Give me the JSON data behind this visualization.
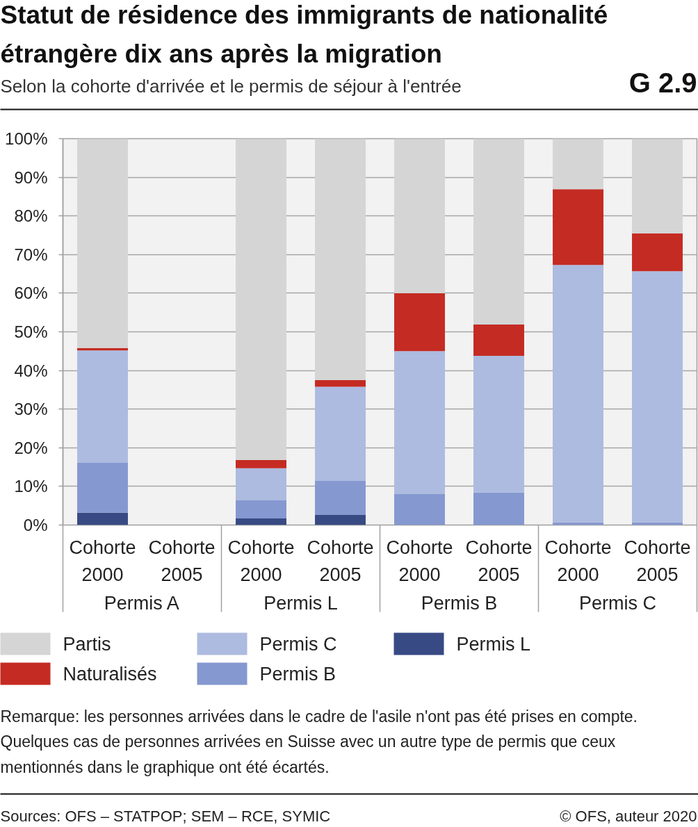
{
  "chart_data": {
    "type": "bar",
    "title": "Statut de résidence des immigrants de nationalité étrangère dix ans après la migration",
    "subtitle": "Selon la cohorte d'arrivée et le permis de séjour à l'entrée",
    "categories": [
      "Cohorte 2000",
      "Cohorte 2005",
      "Cohorte 2000",
      "Cohorte 2005",
      "Cohorte 2000",
      "Cohorte 2005",
      "Cohorte 2000",
      "Cohorte 2005"
    ],
    "stacked": true,
    "series": [
      {
        "name": "Permis L",
        "color": "#384a84",
        "values": [
          3.2,
          null,
          1.7,
          2.6,
          null,
          null,
          null,
          null
        ]
      },
      {
        "name": "Permis B",
        "color": "#8598d0",
        "values": [
          12.9,
          null,
          4.7,
          8.8,
          8.0,
          8.4,
          0.7,
          0.7
        ]
      },
      {
        "name": "Permis C",
        "color": "#adbbe0",
        "values": [
          29.1,
          null,
          8.3,
          24.4,
          37.0,
          35.4,
          66.6,
          65.0
        ]
      },
      {
        "name": "Naturalisés",
        "color": "#c42b23",
        "values": [
          0.6,
          null,
          2.1,
          1.7,
          15.0,
          8.1,
          19.6,
          9.8
        ]
      },
      {
        "name": "Partis",
        "color": "#d4d5d4",
        "values": [
          54.2,
          null,
          83.2,
          62.5,
          40.0,
          48.1,
          13.1,
          24.5
        ]
      }
    ],
    "ylim": [
      0,
      100
    ],
    "yticks": [
      {
        "value": 0,
        "label": "0%"
      },
      {
        "value": 10,
        "label": "10%"
      },
      {
        "value": 20,
        "label": "20%"
      },
      {
        "value": 30,
        "label": "30%"
      },
      {
        "value": 40,
        "label": "40%"
      },
      {
        "value": 50,
        "label": "50%"
      },
      {
        "value": 60,
        "label": "60%"
      },
      {
        "value": 70,
        "label": "70%"
      },
      {
        "value": 80,
        "label": "80%"
      },
      {
        "value": 90,
        "label": "90%"
      },
      {
        "value": 100,
        "label": "100%"
      }
    ],
    "grid": "y",
    "legend": "bottom",
    "annotations": [
      "G 2.9",
      "Permis A",
      "Permis L",
      "Permis B",
      "Permis C",
      "Remarque: les personnes arrivées dans le cadre de l'asile n'ont pas été prises en compte. Quelques cas de personnes arrivées en Suisse avec un autre type de permis que ceux mentionnés dans le graphique ont été écartés.",
      "Sources: OFS – STATPOP; SEM – RCE, SYMIC",
      "© OFS, auteur 2020"
    ]
  }
}
